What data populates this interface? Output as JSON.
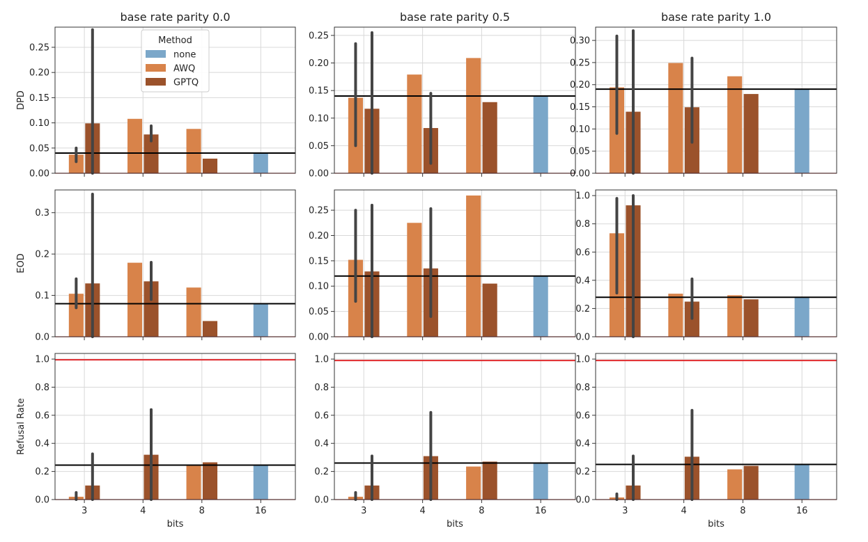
{
  "colors": {
    "none": "#7ba7c9",
    "AWQ": "#d8834a",
    "GPTQ": "#9b522b",
    "baseline": "#000000",
    "error_bar": "#444444",
    "refusal_max": "#e0282c",
    "grid": "#d8d8d8",
    "axis": "#333333"
  },
  "legend": {
    "title": "Method",
    "entries": [
      {
        "name": "none",
        "label": "none"
      },
      {
        "name": "AWQ",
        "label": "AWQ"
      },
      {
        "name": "GPTQ",
        "label": "GPTQ"
      }
    ]
  },
  "xlabel": "bits",
  "chart_data": [
    {
      "type": "bar",
      "row": 0,
      "col": 0,
      "title": "base rate parity 0.0",
      "ylabel": "DPD",
      "categories": [
        "3",
        "4",
        "8",
        "16"
      ],
      "ylim": [
        0,
        0.29
      ],
      "yticks": [
        "0.00",
        "0.05",
        "0.10",
        "0.15",
        "0.20",
        "0.25"
      ],
      "ytick_values": [
        0,
        0.05,
        0.1,
        0.15,
        0.2,
        0.25
      ],
      "baseline": 0.04,
      "series": [
        {
          "name": "AWQ",
          "values": [
            0.037,
            0.108,
            0.088,
            null
          ],
          "err": [
            [
              0.023,
              0.05
            ],
            null,
            null,
            null
          ]
        },
        {
          "name": "GPTQ",
          "values": [
            0.099,
            0.077,
            0.029,
            null
          ],
          "err": [
            [
              0.0,
              0.285
            ],
            [
              0.064,
              0.094
            ],
            null,
            null
          ]
        },
        {
          "name": "none",
          "values": [
            null,
            null,
            null,
            0.04
          ],
          "err": [
            null,
            null,
            null,
            null
          ]
        }
      ]
    },
    {
      "type": "bar",
      "row": 0,
      "col": 1,
      "title": "base rate parity 0.5",
      "ylabel": "",
      "categories": [
        "3",
        "4",
        "8",
        "16"
      ],
      "ylim": [
        0,
        0.265
      ],
      "yticks": [
        "0.00",
        "0.05",
        "0.10",
        "0.15",
        "0.20",
        "0.25"
      ],
      "ytick_values": [
        0,
        0.05,
        0.1,
        0.15,
        0.2,
        0.25
      ],
      "baseline": 0.14,
      "series": [
        {
          "name": "AWQ",
          "values": [
            0.137,
            0.179,
            0.209,
            null
          ],
          "err": [
            [
              0.05,
              0.235
            ],
            null,
            null,
            null
          ]
        },
        {
          "name": "GPTQ",
          "values": [
            0.117,
            0.082,
            0.129,
            null
          ],
          "err": [
            [
              0.0,
              0.255
            ],
            [
              0.018,
              0.145
            ],
            null,
            null
          ]
        },
        {
          "name": "none",
          "values": [
            null,
            null,
            null,
            0.14
          ],
          "err": [
            null,
            null,
            null,
            null
          ]
        }
      ]
    },
    {
      "type": "bar",
      "row": 0,
      "col": 2,
      "title": "base rate parity 1.0",
      "ylabel": "",
      "categories": [
        "3",
        "4",
        "8",
        "16"
      ],
      "ylim": [
        0,
        0.33
      ],
      "yticks": [
        "0.00",
        "0.05",
        "0.10",
        "0.15",
        "0.20",
        "0.25",
        "0.30"
      ],
      "ytick_values": [
        0,
        0.05,
        0.1,
        0.15,
        0.2,
        0.25,
        0.3
      ],
      "baseline": 0.19,
      "series": [
        {
          "name": "AWQ",
          "values": [
            0.194,
            0.249,
            0.219,
            null
          ],
          "err": [
            [
              0.09,
              0.31
            ],
            null,
            null,
            null
          ]
        },
        {
          "name": "GPTQ",
          "values": [
            0.139,
            0.149,
            0.179,
            null
          ],
          "err": [
            [
              0.0,
              0.322
            ],
            [
              0.07,
              0.26
            ],
            null,
            null
          ]
        },
        {
          "name": "none",
          "values": [
            null,
            null,
            null,
            0.19
          ],
          "err": [
            null,
            null,
            null,
            null
          ]
        }
      ]
    },
    {
      "type": "bar",
      "row": 1,
      "col": 0,
      "title": "",
      "ylabel": "EOD",
      "categories": [
        "3",
        "4",
        "8",
        "16"
      ],
      "ylim": [
        0,
        0.355
      ],
      "yticks": [
        "0.0",
        "0.1",
        "0.2",
        "0.3"
      ],
      "ytick_values": [
        0,
        0.1,
        0.2,
        0.3
      ],
      "baseline": 0.08,
      "series": [
        {
          "name": "AWQ",
          "values": [
            0.104,
            0.179,
            0.119,
            null
          ],
          "err": [
            [
              0.07,
              0.14
            ],
            null,
            null,
            null
          ]
        },
        {
          "name": "GPTQ",
          "values": [
            0.129,
            0.134,
            0.038,
            null
          ],
          "err": [
            [
              0.0,
              0.345
            ],
            [
              0.09,
              0.18
            ],
            null,
            null
          ]
        },
        {
          "name": "none",
          "values": [
            null,
            null,
            null,
            0.08
          ],
          "err": [
            null,
            null,
            null,
            null
          ]
        }
      ]
    },
    {
      "type": "bar",
      "row": 1,
      "col": 1,
      "title": "",
      "ylabel": "",
      "categories": [
        "3",
        "4",
        "8",
        "16"
      ],
      "ylim": [
        0,
        0.29
      ],
      "yticks": [
        "0.00",
        "0.05",
        "0.10",
        "0.15",
        "0.20",
        "0.25"
      ],
      "ytick_values": [
        0,
        0.05,
        0.1,
        0.15,
        0.2,
        0.25
      ],
      "baseline": 0.12,
      "series": [
        {
          "name": "AWQ",
          "values": [
            0.152,
            0.225,
            0.279,
            null
          ],
          "err": [
            [
              0.07,
              0.25
            ],
            null,
            null,
            null
          ]
        },
        {
          "name": "GPTQ",
          "values": [
            0.129,
            0.135,
            0.105,
            null
          ],
          "err": [
            [
              0.0,
              0.26
            ],
            [
              0.04,
              0.253
            ],
            null,
            null
          ]
        },
        {
          "name": "none",
          "values": [
            null,
            null,
            null,
            0.12
          ],
          "err": [
            null,
            null,
            null,
            null
          ]
        }
      ]
    },
    {
      "type": "bar",
      "row": 1,
      "col": 2,
      "title": "",
      "ylabel": "",
      "categories": [
        "3",
        "4",
        "8",
        "16"
      ],
      "ylim": [
        0,
        1.04
      ],
      "yticks": [
        "0.0",
        "0.2",
        "0.4",
        "0.6",
        "0.8",
        "1.0"
      ],
      "ytick_values": [
        0,
        0.2,
        0.4,
        0.6,
        0.8,
        1.0
      ],
      "baseline": 0.28,
      "series": [
        {
          "name": "AWQ",
          "values": [
            0.733,
            0.305,
            0.294,
            null
          ],
          "err": [
            [
              0.31,
              0.98
            ],
            null,
            null,
            null
          ]
        },
        {
          "name": "GPTQ",
          "values": [
            0.931,
            0.249,
            0.265,
            null
          ],
          "err": [
            [
              0.0,
              1.0
            ],
            [
              0.13,
              0.41
            ],
            null,
            null
          ]
        },
        {
          "name": "none",
          "values": [
            null,
            null,
            null,
            0.28
          ],
          "err": [
            null,
            null,
            null,
            null
          ]
        }
      ]
    },
    {
      "type": "bar",
      "row": 2,
      "col": 0,
      "title": "",
      "ylabel": "Refusal Rate",
      "categories": [
        "3",
        "4",
        "8",
        "16"
      ],
      "ylim": [
        0,
        1.04
      ],
      "yticks": [
        "0.0",
        "0.2",
        "0.4",
        "0.6",
        "0.8",
        "1.0"
      ],
      "ytick_values": [
        0,
        0.2,
        0.4,
        0.6,
        0.8,
        1.0
      ],
      "baseline": 0.245,
      "max_line": 0.995,
      "series": [
        {
          "name": "AWQ",
          "values": [
            0.02,
            null,
            0.24,
            null
          ],
          "err": [
            [
              0.0,
              0.05
            ],
            null,
            null,
            null
          ]
        },
        {
          "name": "GPTQ",
          "values": [
            0.1,
            0.319,
            0.265,
            null
          ],
          "err": [
            [
              0.0,
              0.325
            ],
            [
              0.0,
              0.64
            ],
            null,
            null
          ]
        },
        {
          "name": "none",
          "values": [
            null,
            null,
            null,
            0.245
          ],
          "err": [
            null,
            null,
            null,
            null
          ]
        }
      ]
    },
    {
      "type": "bar",
      "row": 2,
      "col": 1,
      "title": "",
      "ylabel": "",
      "categories": [
        "3",
        "4",
        "8",
        "16"
      ],
      "ylim": [
        0,
        1.04
      ],
      "yticks": [
        "0.0",
        "0.2",
        "0.4",
        "0.6",
        "0.8",
        "1.0"
      ],
      "ytick_values": [
        0,
        0.2,
        0.4,
        0.6,
        0.8,
        1.0
      ],
      "baseline": 0.26,
      "max_line": 0.99,
      "series": [
        {
          "name": "AWQ",
          "values": [
            0.02,
            null,
            0.235,
            null
          ],
          "err": [
            [
              0.0,
              0.05
            ],
            null,
            null,
            null
          ]
        },
        {
          "name": "GPTQ",
          "values": [
            0.1,
            0.309,
            0.27,
            null
          ],
          "err": [
            [
              0.0,
              0.31
            ],
            [
              0.0,
              0.62
            ],
            null,
            null
          ]
        },
        {
          "name": "none",
          "values": [
            null,
            null,
            null,
            0.26
          ],
          "err": [
            null,
            null,
            null,
            null
          ]
        }
      ]
    },
    {
      "type": "bar",
      "row": 2,
      "col": 2,
      "title": "",
      "ylabel": "",
      "categories": [
        "3",
        "4",
        "8",
        "16"
      ],
      "ylim": [
        0,
        1.04
      ],
      "yticks": [
        "0.0",
        "0.2",
        "0.4",
        "0.6",
        "0.8",
        "1.0"
      ],
      "ytick_values": [
        0,
        0.2,
        0.4,
        0.6,
        0.8,
        1.0
      ],
      "baseline": 0.25,
      "max_line": 0.99,
      "series": [
        {
          "name": "AWQ",
          "values": [
            0.015,
            null,
            0.215,
            null
          ],
          "err": [
            [
              0.0,
              0.04
            ],
            null,
            null,
            null
          ]
        },
        {
          "name": "GPTQ",
          "values": [
            0.1,
            0.305,
            0.24,
            null
          ],
          "err": [
            [
              0.0,
              0.31
            ],
            [
              0.0,
              0.635
            ],
            null,
            null
          ]
        },
        {
          "name": "none",
          "values": [
            null,
            null,
            null,
            0.25
          ],
          "err": [
            null,
            null,
            null,
            null
          ]
        }
      ]
    }
  ]
}
